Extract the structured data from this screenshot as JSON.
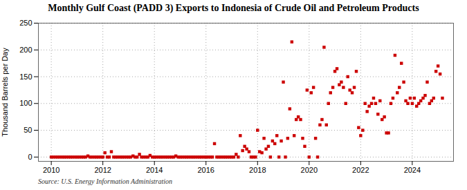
{
  "chart_data": {
    "type": "scatter",
    "title": "Monthly Gulf Coast (PADD 3) Exports to Indonesia of Crude Oil and Petroleum Products",
    "ylabel": "Thousand Barrels per Day",
    "source": "Source: U.S. Energy Information Administration",
    "color": "#cc0000",
    "marker": "square",
    "grid": true,
    "xlim": [
      2009.5,
      2025.6
    ],
    "ylim": [
      -8,
      250
    ],
    "xticks": [
      2010,
      2012,
      2014,
      2016,
      2018,
      2020,
      2022,
      2024
    ],
    "yticks": [
      0,
      50,
      100,
      150,
      200,
      250
    ],
    "x": [
      2010.0,
      2010.08,
      2010.17,
      2010.25,
      2010.33,
      2010.42,
      2010.5,
      2010.58,
      2010.67,
      2010.75,
      2010.83,
      2010.92,
      2011.0,
      2011.08,
      2011.17,
      2011.25,
      2011.33,
      2011.42,
      2011.5,
      2011.58,
      2011.67,
      2011.75,
      2011.83,
      2011.92,
      2012.0,
      2012.08,
      2012.17,
      2012.25,
      2012.33,
      2012.42,
      2012.5,
      2012.58,
      2012.67,
      2012.75,
      2012.83,
      2012.92,
      2013.0,
      2013.08,
      2013.17,
      2013.25,
      2013.33,
      2013.42,
      2013.5,
      2013.58,
      2013.67,
      2013.75,
      2013.83,
      2013.92,
      2014.0,
      2014.08,
      2014.17,
      2014.25,
      2014.33,
      2014.42,
      2014.5,
      2014.58,
      2014.67,
      2014.75,
      2014.83,
      2014.92,
      2015.0,
      2015.08,
      2015.17,
      2015.25,
      2015.33,
      2015.42,
      2015.5,
      2015.58,
      2015.67,
      2015.75,
      2015.83,
      2015.92,
      2016.0,
      2016.08,
      2016.17,
      2016.25,
      2016.33,
      2016.42,
      2016.5,
      2016.58,
      2016.67,
      2016.75,
      2016.83,
      2016.92,
      2017.0,
      2017.08,
      2017.17,
      2017.25,
      2017.33,
      2017.42,
      2017.5,
      2017.58,
      2017.67,
      2017.75,
      2017.83,
      2017.92,
      2018.0,
      2018.08,
      2018.17,
      2018.25,
      2018.33,
      2018.42,
      2018.5,
      2018.58,
      2018.67,
      2018.75,
      2018.83,
      2018.92,
      2019.0,
      2019.08,
      2019.17,
      2019.25,
      2019.33,
      2019.42,
      2019.5,
      2019.58,
      2019.67,
      2019.75,
      2019.83,
      2019.92,
      2020.0,
      2020.08,
      2020.17,
      2020.25,
      2020.33,
      2020.42,
      2020.5,
      2020.58,
      2020.67,
      2020.75,
      2020.83,
      2020.92,
      2021.0,
      2021.08,
      2021.17,
      2021.25,
      2021.33,
      2021.42,
      2021.5,
      2021.58,
      2021.67,
      2021.75,
      2021.83,
      2021.92,
      2022.0,
      2022.08,
      2022.17,
      2022.25,
      2022.33,
      2022.42,
      2022.5,
      2022.58,
      2022.67,
      2022.75,
      2022.83,
      2022.92,
      2023.0,
      2023.08,
      2023.17,
      2023.25,
      2023.33,
      2023.42,
      2023.5,
      2023.58,
      2023.67,
      2023.75,
      2023.83,
      2023.92,
      2024.0,
      2024.08,
      2024.17,
      2024.25,
      2024.33,
      2024.42,
      2024.5,
      2024.58,
      2024.67,
      2024.75,
      2024.83,
      2024.92,
      2025.0,
      2025.08,
      2025.17
    ],
    "values": [
      0,
      0,
      0,
      0,
      0,
      0,
      0,
      0,
      0,
      0,
      0,
      0,
      0,
      0,
      0,
      0,
      0,
      2,
      0,
      0,
      0,
      0,
      0,
      0,
      0,
      8,
      0,
      0,
      10,
      0,
      0,
      0,
      0,
      0,
      0,
      0,
      0,
      0,
      2,
      0,
      0,
      5,
      0,
      0,
      0,
      0,
      3,
      0,
      0,
      0,
      0,
      0,
      0,
      0,
      0,
      0,
      0,
      0,
      2,
      0,
      0,
      0,
      0,
      0,
      0,
      0,
      0,
      0,
      0,
      0,
      0,
      0,
      0,
      0,
      0,
      0,
      25,
      0,
      0,
      0,
      0,
      0,
      0,
      0,
      0,
      0,
      5,
      0,
      40,
      12,
      20,
      15,
      10,
      0,
      0,
      0,
      50,
      10,
      8,
      35,
      15,
      20,
      0,
      30,
      25,
      40,
      0,
      30,
      140,
      0,
      35,
      90,
      215,
      40,
      70,
      75,
      70,
      35,
      20,
      125,
      0,
      120,
      130,
      35,
      0,
      60,
      70,
      205,
      60,
      100,
      120,
      130,
      160,
      165,
      135,
      140,
      130,
      100,
      150,
      125,
      120,
      130,
      160,
      55,
      40,
      50,
      100,
      85,
      95,
      100,
      110,
      100,
      80,
      105,
      70,
      75,
      45,
      45,
      100,
      110,
      190,
      120,
      130,
      175,
      140,
      105,
      100,
      110,
      100,
      110,
      95,
      100,
      105,
      110,
      115,
      140,
      100,
      105,
      110,
      160,
      170,
      155,
      110
    ]
  }
}
